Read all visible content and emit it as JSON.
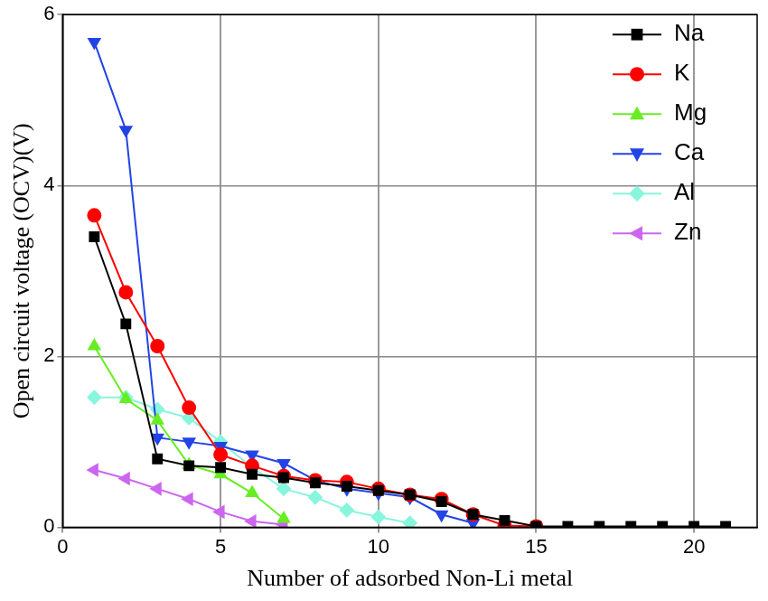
{
  "chart_data": {
    "type": "line",
    "x_label": "Number of adsorbed Non-Li metal",
    "y_label": "Open circuit voltage (OCV)(V)",
    "x": [
      1,
      2,
      3,
      4,
      5,
      6,
      7,
      8,
      9,
      10,
      11,
      12,
      13,
      14,
      15,
      16,
      17,
      18,
      19,
      20,
      21
    ],
    "series": [
      {
        "name": "Na",
        "color": "#000000",
        "marker": "square",
        "values": [
          3.4,
          2.38,
          0.8,
          0.72,
          0.7,
          0.62,
          0.58,
          0.52,
          0.48,
          0.43,
          0.38,
          0.3,
          0.15,
          0.08,
          0.01,
          0.01,
          0.01,
          0.01,
          0.01,
          0.01,
          0.01
        ]
      },
      {
        "name": "K",
        "color": "#ff0000",
        "marker": "circle",
        "values": [
          3.65,
          2.75,
          2.12,
          1.4,
          0.85,
          0.72,
          0.6,
          0.55,
          0.53,
          0.45,
          0.38,
          0.33,
          0.15,
          0.02,
          0.01,
          null,
          null,
          null,
          null,
          null,
          null
        ]
      },
      {
        "name": "Mg",
        "color": "#66ee22",
        "marker": "triangle-up",
        "values": [
          2.12,
          1.5,
          1.25,
          0.73,
          0.62,
          0.4,
          0.1,
          null,
          null,
          null,
          null,
          null,
          null,
          null,
          null,
          null,
          null,
          null,
          null,
          null,
          null
        ]
      },
      {
        "name": "Ca",
        "color": "#2244e6",
        "marker": "triangle-down",
        "values": [
          5.68,
          4.65,
          1.05,
          1.0,
          0.95,
          0.85,
          0.75,
          0.55,
          0.45,
          0.4,
          0.35,
          0.15,
          0.05,
          null,
          null,
          null,
          null,
          null,
          null,
          null,
          null
        ]
      },
      {
        "name": "Al",
        "color": "#88f5dd",
        "marker": "diamond",
        "values": [
          1.52,
          1.52,
          1.38,
          1.28,
          1.0,
          0.7,
          0.45,
          0.35,
          0.2,
          0.12,
          0.05,
          null,
          null,
          null,
          null,
          null,
          null,
          null,
          null,
          null,
          null
        ]
      },
      {
        "name": "Zn",
        "color": "#cc66ee",
        "marker": "triangle-left",
        "values": [
          0.67,
          0.57,
          0.45,
          0.33,
          0.18,
          0.07,
          0.03,
          null,
          null,
          null,
          null,
          null,
          null,
          null,
          null,
          null,
          null,
          null,
          null,
          null,
          null
        ]
      }
    ],
    "xlim": [
      0,
      22
    ],
    "xticks": [
      0,
      5,
      10,
      15,
      20
    ],
    "ylim": [
      0,
      6
    ],
    "yticks": [
      0,
      2,
      4,
      6
    ],
    "grid": true,
    "legend": "upper right"
  }
}
